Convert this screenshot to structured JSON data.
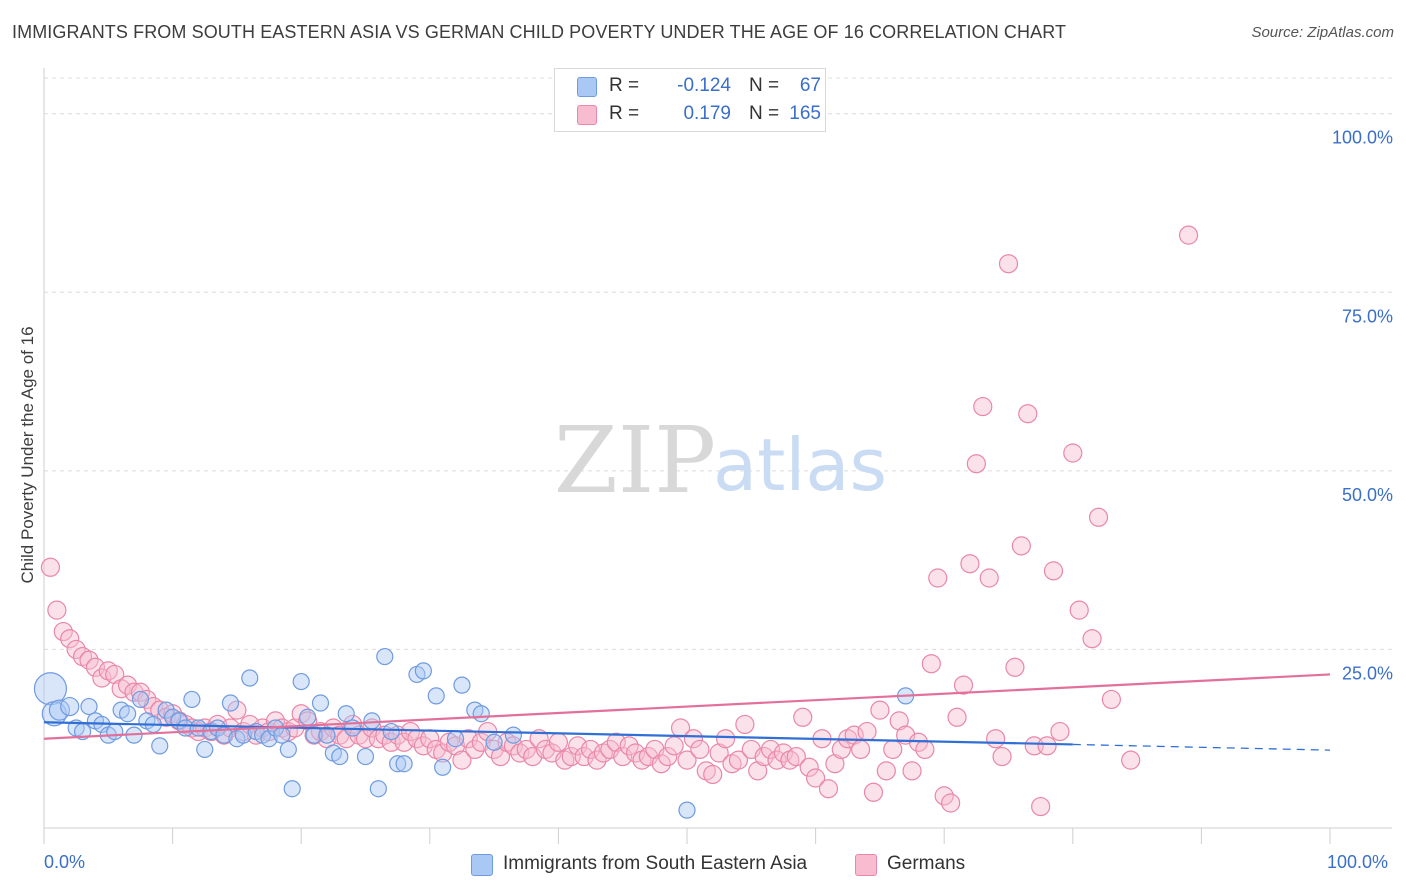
{
  "title": "IMMIGRANTS FROM SOUTH EASTERN ASIA VS GERMAN CHILD POVERTY UNDER THE AGE OF 16 CORRELATION CHART",
  "source": "Source: ZipAtlas.com",
  "watermark": {
    "zip": "ZIP",
    "atlas": "atlas"
  },
  "legend": {
    "rows": [
      {
        "r_label": "R =",
        "r_value": "-0.124",
        "n_label": "N =",
        "n_value": "67",
        "color": "#aac8f4",
        "border": "#6f9be0"
      },
      {
        "r_label": "R =",
        "r_value": "0.179",
        "n_label": "N =",
        "n_value": "165",
        "color": "#f7bcd0",
        "border": "#e987a8"
      }
    ]
  },
  "bottom_legend": {
    "series1": "Immigrants from South Eastern Asia",
    "series2": "Germans"
  },
  "chart_data": {
    "type": "scatter",
    "xlabel": "",
    "ylabel": "Child Poverty Under the Age of 16",
    "xlim": [
      0,
      100
    ],
    "ylim": [
      0,
      105
    ],
    "x_tick_labels": [
      "0.0%",
      "100.0%"
    ],
    "y_ticks": [
      25,
      50,
      75,
      100
    ],
    "y_tick_labels": [
      "25.0%",
      "50.0%",
      "75.0%",
      "100.0%"
    ],
    "grid": true,
    "series": [
      {
        "name": "Immigrants from South Eastern Asia",
        "color": "#6f9be0",
        "fill": "#aac8f4",
        "trend": {
          "x0": 0,
          "y0": 14.8,
          "x1": 80,
          "y1": 11.7,
          "dash_x1": 100,
          "dash_y1": 10.9,
          "color": "#2f6fd6"
        },
        "points": [
          [
            0.5,
            19.5,
            16
          ],
          [
            0.8,
            16.0,
            12
          ],
          [
            1.2,
            16.5,
            10
          ],
          [
            2.0,
            17.0,
            9
          ],
          [
            2.5,
            14.0,
            8
          ],
          [
            3.0,
            13.5,
            8
          ],
          [
            3.5,
            17.0,
            8
          ],
          [
            4.0,
            15.0,
            8
          ],
          [
            4.5,
            14.5,
            8
          ],
          [
            5.0,
            13.0,
            8
          ],
          [
            5.5,
            13.5,
            8
          ],
          [
            6.0,
            16.5,
            8
          ],
          [
            6.5,
            16.0,
            8
          ],
          [
            7.0,
            13.0,
            8
          ],
          [
            7.5,
            18.0,
            8
          ],
          [
            8.0,
            15.0,
            8
          ],
          [
            8.5,
            14.5,
            8
          ],
          [
            9.0,
            11.5,
            8
          ],
          [
            9.5,
            16.5,
            8
          ],
          [
            10.0,
            15.5,
            8
          ],
          [
            10.5,
            15.0,
            8
          ],
          [
            11.0,
            14.0,
            8
          ],
          [
            11.5,
            18.0,
            8
          ],
          [
            12.0,
            14.0,
            8
          ],
          [
            12.5,
            11.0,
            8
          ],
          [
            13.0,
            13.5,
            8
          ],
          [
            13.5,
            14.0,
            8
          ],
          [
            14.0,
            13.0,
            8
          ],
          [
            14.5,
            17.5,
            8
          ],
          [
            15.0,
            12.5,
            8
          ],
          [
            15.5,
            13.0,
            8
          ],
          [
            16.0,
            21.0,
            8
          ],
          [
            16.5,
            13.5,
            8
          ],
          [
            17.0,
            13.0,
            8
          ],
          [
            17.5,
            12.5,
            8
          ],
          [
            18.0,
            14.0,
            8
          ],
          [
            18.5,
            13.0,
            8
          ],
          [
            19.0,
            11.0,
            8
          ],
          [
            19.3,
            5.5,
            8
          ],
          [
            20.0,
            20.5,
            8
          ],
          [
            20.5,
            15.5,
            8
          ],
          [
            21.0,
            13.0,
            8
          ],
          [
            21.5,
            17.5,
            8
          ],
          [
            22.0,
            13.0,
            8
          ],
          [
            22.5,
            10.5,
            8
          ],
          [
            23.0,
            10.0,
            8
          ],
          [
            23.5,
            16.0,
            8
          ],
          [
            24.0,
            14.0,
            8
          ],
          [
            25.0,
            10.0,
            8
          ],
          [
            25.5,
            15.0,
            8
          ],
          [
            26.0,
            5.5,
            8
          ],
          [
            26.5,
            24.0,
            8
          ],
          [
            27.0,
            13.5,
            8
          ],
          [
            27.5,
            9.0,
            8
          ],
          [
            28.0,
            9.0,
            8
          ],
          [
            29.0,
            21.5,
            8
          ],
          [
            29.5,
            22.0,
            8
          ],
          [
            30.5,
            18.5,
            8
          ],
          [
            31.0,
            8.5,
            8
          ],
          [
            32.0,
            12.5,
            8
          ],
          [
            32.5,
            20.0,
            8
          ],
          [
            33.5,
            16.5,
            8
          ],
          [
            34.0,
            16.0,
            8
          ],
          [
            35.0,
            12.0,
            8
          ],
          [
            36.5,
            13.0,
            8
          ],
          [
            50.0,
            2.5,
            8
          ],
          [
            67.0,
            18.5,
            8
          ]
        ]
      },
      {
        "name": "Germans",
        "color": "#e987a8",
        "fill": "#f7bcd0",
        "trend": {
          "x0": 0,
          "y0": 12.5,
          "x1": 100,
          "y1": 21.5,
          "color": "#e2709a"
        },
        "points": [
          [
            0.5,
            36.5,
            9
          ],
          [
            1.0,
            30.5,
            9
          ],
          [
            1.5,
            27.5,
            9
          ],
          [
            2.0,
            26.5,
            9
          ],
          [
            2.5,
            25.0,
            9
          ],
          [
            3.0,
            24.0,
            9
          ],
          [
            3.5,
            23.5,
            9
          ],
          [
            4.0,
            22.5,
            9
          ],
          [
            4.5,
            21.0,
            9
          ],
          [
            5.0,
            22.0,
            9
          ],
          [
            5.5,
            21.5,
            9
          ],
          [
            6.0,
            19.5,
            9
          ],
          [
            6.5,
            20.0,
            9
          ],
          [
            7.0,
            19.0,
            9
          ],
          [
            7.5,
            19.0,
            9
          ],
          [
            8.0,
            18.0,
            9
          ],
          [
            8.5,
            17.0,
            9
          ],
          [
            9.0,
            16.5,
            9
          ],
          [
            9.5,
            15.5,
            9
          ],
          [
            10.0,
            16.0,
            9
          ],
          [
            10.5,
            15.0,
            9
          ],
          [
            11.0,
            14.5,
            9
          ],
          [
            11.5,
            14.0,
            9
          ],
          [
            12.0,
            13.5,
            9
          ],
          [
            12.5,
            14.0,
            9
          ],
          [
            13.0,
            13.5,
            9
          ],
          [
            13.5,
            14.5,
            9
          ],
          [
            14.0,
            13.0,
            9
          ],
          [
            14.5,
            14.0,
            9
          ],
          [
            15.0,
            16.5,
            9
          ],
          [
            15.5,
            13.5,
            9
          ],
          [
            16.0,
            14.5,
            9
          ],
          [
            16.5,
            13.0,
            9
          ],
          [
            17.0,
            14.0,
            9
          ],
          [
            17.5,
            13.5,
            9
          ],
          [
            18.0,
            15.0,
            9
          ],
          [
            18.5,
            14.0,
            9
          ],
          [
            19.0,
            13.5,
            9
          ],
          [
            19.5,
            14.0,
            9
          ],
          [
            20.0,
            16.0,
            9
          ],
          [
            20.5,
            15.0,
            9
          ],
          [
            21.0,
            13.0,
            9
          ],
          [
            21.5,
            13.5,
            9
          ],
          [
            22.0,
            12.5,
            9
          ],
          [
            22.5,
            14.0,
            9
          ],
          [
            23.0,
            13.0,
            9
          ],
          [
            23.5,
            12.5,
            9
          ],
          [
            24.0,
            14.5,
            9
          ],
          [
            24.5,
            13.0,
            9
          ],
          [
            25.0,
            12.5,
            9
          ],
          [
            25.5,
            14.0,
            9
          ],
          [
            26.0,
            12.5,
            9
          ],
          [
            26.5,
            13.0,
            9
          ],
          [
            27.0,
            12.0,
            9
          ],
          [
            27.5,
            13.0,
            9
          ],
          [
            28.0,
            12.0,
            9
          ],
          [
            28.5,
            13.5,
            9
          ],
          [
            29.0,
            12.5,
            9
          ],
          [
            29.5,
            11.5,
            9
          ],
          [
            30.0,
            12.5,
            9
          ],
          [
            30.5,
            11.0,
            9
          ],
          [
            31.0,
            10.5,
            9
          ],
          [
            31.5,
            12.0,
            9
          ],
          [
            32.0,
            11.5,
            9
          ],
          [
            32.5,
            9.5,
            9
          ],
          [
            33.0,
            12.5,
            9
          ],
          [
            33.5,
            11.0,
            9
          ],
          [
            34.0,
            12.0,
            9
          ],
          [
            34.5,
            13.5,
            9
          ],
          [
            35.0,
            11.0,
            9
          ],
          [
            35.5,
            10.0,
            9
          ],
          [
            36.0,
            12.0,
            9
          ],
          [
            36.5,
            11.5,
            9
          ],
          [
            37.0,
            10.5,
            9
          ],
          [
            37.5,
            11.0,
            9
          ],
          [
            38.0,
            10.0,
            9
          ],
          [
            38.5,
            12.5,
            9
          ],
          [
            39.0,
            11.0,
            9
          ],
          [
            39.5,
            10.5,
            9
          ],
          [
            40.0,
            12.0,
            9
          ],
          [
            40.5,
            9.5,
            9
          ],
          [
            41.0,
            10.0,
            9
          ],
          [
            41.5,
            11.5,
            9
          ],
          [
            42.0,
            10.0,
            9
          ],
          [
            42.5,
            11.0,
            9
          ],
          [
            43.0,
            9.5,
            9
          ],
          [
            43.5,
            10.5,
            9
          ],
          [
            44.0,
            11.0,
            9
          ],
          [
            44.5,
            12.0,
            9
          ],
          [
            45.0,
            10.0,
            9
          ],
          [
            45.5,
            11.5,
            9
          ],
          [
            46.0,
            10.5,
            9
          ],
          [
            46.5,
            9.5,
            9
          ],
          [
            47.0,
            10.0,
            9
          ],
          [
            47.5,
            11.0,
            9
          ],
          [
            48.0,
            9.0,
            9
          ],
          [
            48.5,
            10.0,
            9
          ],
          [
            49.0,
            11.5,
            9
          ],
          [
            49.5,
            14.0,
            9
          ],
          [
            50.0,
            9.5,
            9
          ],
          [
            50.5,
            12.5,
            9
          ],
          [
            51.0,
            11.0,
            9
          ],
          [
            51.5,
            8.0,
            9
          ],
          [
            52.0,
            7.5,
            9
          ],
          [
            52.5,
            10.5,
            9
          ],
          [
            53.0,
            12.5,
            9
          ],
          [
            53.5,
            9.0,
            9
          ],
          [
            54.0,
            9.5,
            9
          ],
          [
            54.5,
            14.5,
            9
          ],
          [
            55.0,
            11.0,
            9
          ],
          [
            55.5,
            8.0,
            9
          ],
          [
            56.0,
            10.0,
            9
          ],
          [
            56.5,
            11.0,
            9
          ],
          [
            57.0,
            9.5,
            9
          ],
          [
            57.5,
            10.5,
            9
          ],
          [
            58.0,
            9.5,
            9
          ],
          [
            58.5,
            10.0,
            9
          ],
          [
            59.0,
            15.5,
            9
          ],
          [
            59.5,
            8.5,
            9
          ],
          [
            60.0,
            7.0,
            9
          ],
          [
            60.5,
            12.5,
            9
          ],
          [
            61.0,
            5.5,
            9
          ],
          [
            61.5,
            9.0,
            9
          ],
          [
            62.0,
            11.0,
            9
          ],
          [
            62.5,
            12.5,
            9
          ],
          [
            63.0,
            13.0,
            9
          ],
          [
            63.5,
            11.0,
            9
          ],
          [
            64.0,
            13.5,
            9
          ],
          [
            64.5,
            5.0,
            9
          ],
          [
            65.0,
            16.5,
            9
          ],
          [
            65.5,
            8.0,
            9
          ],
          [
            66.0,
            11.0,
            9
          ],
          [
            66.5,
            15.0,
            9
          ],
          [
            67.0,
            13.0,
            9
          ],
          [
            67.5,
            8.0,
            9
          ],
          [
            68.0,
            12.0,
            9
          ],
          [
            68.5,
            11.0,
            9
          ],
          [
            69.0,
            23.0,
            9
          ],
          [
            69.5,
            35.0,
            9
          ],
          [
            70.0,
            4.5,
            9
          ],
          [
            70.5,
            3.5,
            9
          ],
          [
            71.0,
            15.5,
            9
          ],
          [
            71.5,
            20.0,
            9
          ],
          [
            72.0,
            37.0,
            9
          ],
          [
            72.5,
            51.0,
            9
          ],
          [
            73.0,
            59.0,
            9
          ],
          [
            73.5,
            35.0,
            9
          ],
          [
            74.0,
            12.5,
            9
          ],
          [
            74.5,
            10.0,
            9
          ],
          [
            75.0,
            79.0,
            9
          ],
          [
            75.5,
            22.5,
            9
          ],
          [
            76.0,
            39.5,
            9
          ],
          [
            76.5,
            58.0,
            9
          ],
          [
            77.0,
            11.5,
            9
          ],
          [
            77.5,
            3.0,
            9
          ],
          [
            78.0,
            11.5,
            9
          ],
          [
            78.5,
            36.0,
            9
          ],
          [
            79.0,
            13.5,
            9
          ],
          [
            80.0,
            52.5,
            9
          ],
          [
            80.5,
            30.5,
            9
          ],
          [
            81.5,
            26.5,
            9
          ],
          [
            82.0,
            43.5,
            9
          ],
          [
            83.0,
            18.0,
            9
          ],
          [
            84.5,
            9.5,
            9
          ],
          [
            89.0,
            83.0,
            9
          ]
        ]
      }
    ]
  }
}
